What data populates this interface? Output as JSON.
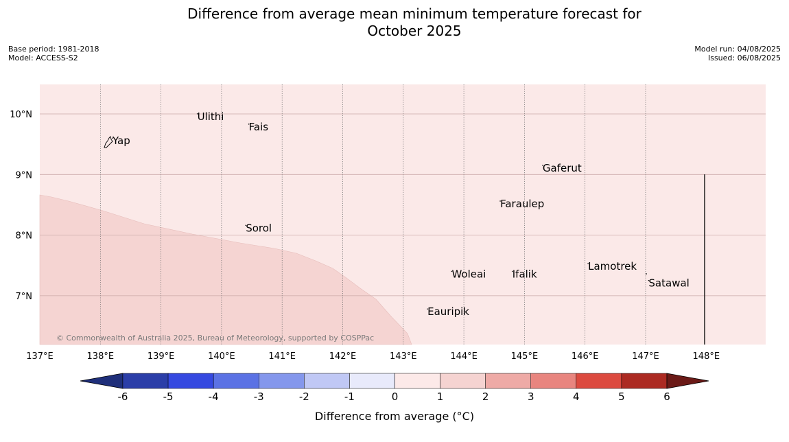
{
  "title_line1": "Difference from average mean minimum temperature forecast for",
  "title_line2": "October 2025",
  "meta_left": [
    "Base period: 1981-2018",
    "Model: ACCESS-S2"
  ],
  "meta_right": [
    "Model run: 04/08/2025",
    "Issued: 06/08/2025"
  ],
  "copyright": "© Commonwealth of Australia 2025, Bureau of Meteorology, supported by COSPPac",
  "lon_ticks": [
    "137°E",
    "138°E",
    "139°E",
    "140°E",
    "141°E",
    "142°E",
    "143°E",
    "144°E",
    "145°E",
    "146°E",
    "147°E",
    "148°E"
  ],
  "lat_ticks": [
    "10°N",
    "9°N",
    "8°N",
    "7°N"
  ],
  "places": [
    {
      "name": "Yap",
      "lon": 138.2,
      "lat": 9.5
    },
    {
      "name": "Ulithi",
      "lon": 139.6,
      "lat": 9.9
    },
    {
      "name": "Fais",
      "lon": 140.45,
      "lat": 9.73
    },
    {
      "name": "Gaferut",
      "lon": 145.3,
      "lat": 9.05
    },
    {
      "name": "Faraulep",
      "lon": 144.6,
      "lat": 8.46
    },
    {
      "name": "Sorol",
      "lon": 140.4,
      "lat": 8.06
    },
    {
      "name": "Woleai",
      "lon": 143.8,
      "lat": 7.3
    },
    {
      "name": "Ifalik",
      "lon": 144.8,
      "lat": 7.3
    },
    {
      "name": "Lamotrek",
      "lon": 146.05,
      "lat": 7.43
    },
    {
      "name": "Satawal",
      "lon": 147.05,
      "lat": 7.15
    },
    {
      "name": "Eauripik",
      "lon": 143.4,
      "lat": 6.68
    }
  ],
  "colorbar": {
    "ticks": [
      "-6",
      "-5",
      "-4",
      "-3",
      "-2",
      "-1",
      "0",
      "1",
      "2",
      "3",
      "4",
      "5",
      "6"
    ],
    "colors": [
      "#2b3ea8",
      "#3549e0",
      "#5b72e4",
      "#8497ec",
      "#c0c8f5",
      "#e8eafb",
      "#fce9e8",
      "#f5d3d1",
      "#eeaaa6",
      "#e8857f",
      "#dc4a3f",
      "#ac2a22"
    ],
    "under_color": "#1f2f7a",
    "over_color": "#6b1a17",
    "label": "Difference from average (°C)"
  },
  "map_fill_colors": {
    "background": "#fbe9e8",
    "warm_zone": "#f5d4d2"
  }
}
